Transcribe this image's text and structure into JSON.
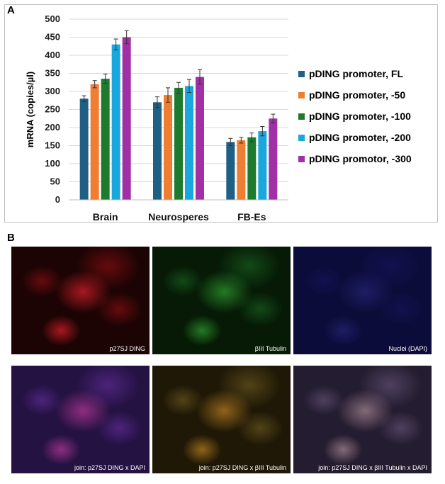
{
  "panel_a_label": "A",
  "panel_b_label": "B",
  "chart_data": {
    "type": "bar",
    "title": "",
    "xlabel": "",
    "ylabel": "mRNA (copies/µl)",
    "ylim": [
      0,
      500
    ],
    "yticks": [
      0,
      50,
      100,
      150,
      200,
      250,
      300,
      350,
      400,
      450,
      500
    ],
    "grid": true,
    "legend_position": "right",
    "categories": [
      "Brain",
      "Neurosperes",
      "FB-Es"
    ],
    "series": [
      {
        "name": "pDING promoter, FL",
        "color": "#1f5f84",
        "values": [
          280,
          270,
          160
        ],
        "errors": [
          8,
          15,
          10
        ]
      },
      {
        "name": "pDING promoter, -50",
        "color": "#ef7d32",
        "values": [
          320,
          290,
          165
        ],
        "errors": [
          10,
          20,
          8
        ]
      },
      {
        "name": "pDING promoter, -100",
        "color": "#1e7b2e",
        "values": [
          335,
          310,
          173
        ],
        "errors": [
          13,
          15,
          12
        ]
      },
      {
        "name": "pDING promoter, -200",
        "color": "#1aa7de",
        "values": [
          430,
          315,
          190
        ],
        "errors": [
          15,
          18,
          13
        ]
      },
      {
        "name": "pDING promotor, -300",
        "color": "#a12fa5",
        "values": [
          450,
          340,
          225
        ],
        "errors": [
          18,
          20,
          12
        ]
      }
    ]
  },
  "images": [
    {
      "caption": "p27SJ DING",
      "tone": "red"
    },
    {
      "caption": "βIII Tubulin",
      "tone": "green"
    },
    {
      "caption": "Nuclei (DAPI)",
      "tone": "blue"
    },
    {
      "caption": "join: p27SJ DING x DAPI",
      "tone": "magenta"
    },
    {
      "caption": "join: p27SJ DING x βIII Tubulin",
      "tone": "orange"
    },
    {
      "caption": "join: p27SJ DING x βIII Tubulin x DAPI",
      "tone": "mixed"
    }
  ]
}
